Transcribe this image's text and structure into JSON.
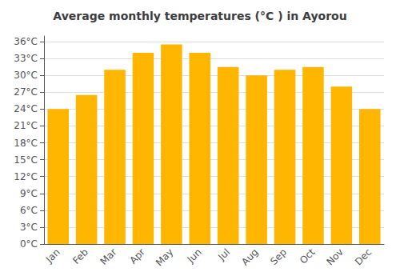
{
  "chart_data": {
    "type": "bar",
    "title": "Average monthly temperatures (°C ) in Ayorou",
    "categories": [
      "Jan",
      "Feb",
      "Mar",
      "Apr",
      "May",
      "Jun",
      "Jul",
      "Aug",
      "Sep",
      "Oct",
      "Nov",
      "Dec"
    ],
    "values": [
      24,
      26.5,
      31,
      34,
      35.5,
      34,
      31.5,
      30,
      31,
      31.5,
      28,
      24
    ],
    "color": "#FFB600",
    "ylim": [
      0,
      37
    ],
    "yticks": [
      {
        "value": 0,
        "label": "0°C"
      },
      {
        "value": 3,
        "label": "3°C"
      },
      {
        "value": 6,
        "label": "6°C"
      },
      {
        "value": 9,
        "label": "9°C"
      },
      {
        "value": 12,
        "label": "12°C"
      },
      {
        "value": 15,
        "label": "15°C"
      },
      {
        "value": 18,
        "label": "18°C"
      },
      {
        "value": 21,
        "label": "21°C"
      },
      {
        "value": 24,
        "label": "24°C"
      },
      {
        "value": 27,
        "label": "27°C"
      },
      {
        "value": 30,
        "label": "30°C"
      },
      {
        "value": 33,
        "label": "33°C"
      },
      {
        "value": 36,
        "label": "36°C"
      }
    ],
    "grid": true
  }
}
